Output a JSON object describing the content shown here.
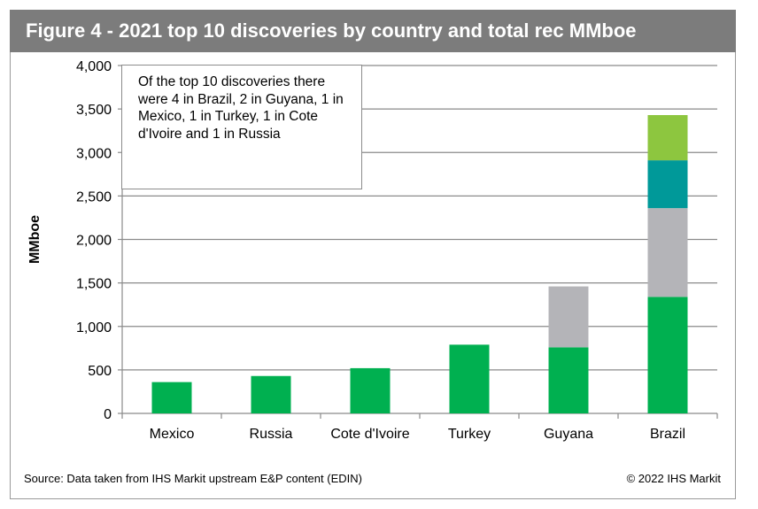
{
  "title": "Figure 4 - 2021 top 10 discoveries by country and total rec MMboe",
  "annotation": "Of the top 10 discoveries there were 4 in Brazil, 2 in Guyana, 1 in Mexico, 1 in Turkey, 1 in Cote d'Ivoire and 1 in Russia",
  "source": "Source: Data taken from IHS Markit upstream E&P content (EDIN)",
  "copyright": "© 2022 IHS Markit",
  "chart_data": {
    "type": "bar",
    "stacked": true,
    "categories": [
      "Mexico",
      "Russia",
      "Cote d'Ivoire",
      "Turkey",
      "Guyana",
      "Brazil"
    ],
    "ylabel": "MMboe",
    "ylim": [
      0,
      4000
    ],
    "yticks": [
      0,
      500,
      1000,
      1500,
      2000,
      2500,
      3000,
      3500,
      4000
    ],
    "ytick_labels": [
      "0",
      "500",
      "1,000",
      "1,500",
      "2,000",
      "2,500",
      "3,000",
      "3,500",
      "4,000"
    ],
    "grid": true,
    "legend": "none",
    "series": [
      {
        "color": "#00b050",
        "values": [
          360,
          430,
          520,
          790,
          760,
          1340
        ]
      },
      {
        "color": "#b4b4b8",
        "values": [
          0,
          0,
          0,
          0,
          700,
          1020
        ]
      },
      {
        "color": "#009999",
        "values": [
          0,
          0,
          0,
          0,
          0,
          550
        ]
      },
      {
        "color": "#8dc63f",
        "values": [
          0,
          0,
          0,
          0,
          0,
          520
        ]
      }
    ]
  }
}
